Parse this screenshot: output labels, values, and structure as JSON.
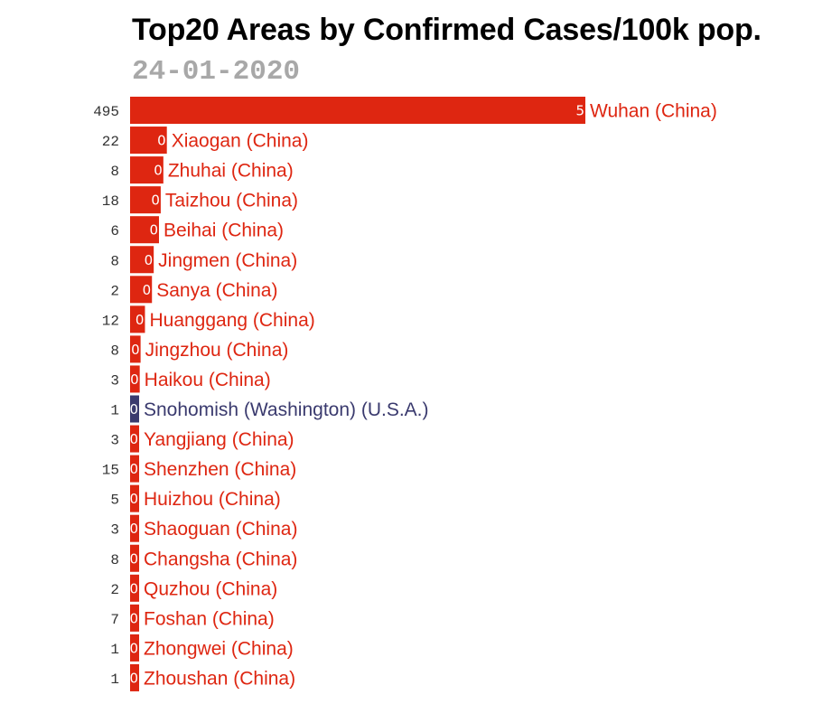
{
  "title": "Top20 Areas by Confirmed Cases/100k pop.",
  "date": "24-01-2020",
  "colors": {
    "china": "#de2611",
    "usa": "#3a3a6e"
  },
  "chart_data": {
    "type": "bar",
    "title": "Top20 Areas by Confirmed Cases/100k pop.",
    "subtitle": "24-01-2020",
    "categories": [
      "Wuhan (China)",
      "Xiaogan (China)",
      "Zhuhai (China)",
      "Taizhou (China)",
      "Beihai (China)",
      "Jingmen (China)",
      "Sanya (China)",
      "Huanggang (China)",
      "Jingzhou (China)",
      "Haikou (China)",
      "Snohomish (Washington) (U.S.A.)",
      "Yangjiang (China)",
      "Shenzhen (China)",
      "Huizhou (China)",
      "Shaoguan (China)",
      "Changsha (China)",
      "Quzhou (China)",
      "Foshan (China)",
      "Zhongwei (China)",
      "Zhoushan (China)"
    ],
    "confirmed": [
      495,
      22,
      8,
      18,
      6,
      8,
      2,
      12,
      8,
      3,
      1,
      3,
      15,
      5,
      3,
      8,
      2,
      7,
      1,
      1
    ],
    "bar_labels": [
      "5",
      "0",
      "0",
      "0",
      "0",
      "0",
      "0",
      "0",
      "0",
      "0",
      "0",
      "0",
      "0",
      "0",
      "0",
      "0",
      "0",
      "0",
      "0",
      "0"
    ],
    "values": [
      5.2,
      0.42,
      0.38,
      0.35,
      0.33,
      0.27,
      0.25,
      0.17,
      0.12,
      0.11,
      0.1,
      0.09,
      0.09,
      0.08,
      0.08,
      0.08,
      0.07,
      0.07,
      0.07,
      0.07
    ],
    "country": [
      "China",
      "China",
      "China",
      "China",
      "China",
      "China",
      "China",
      "China",
      "China",
      "China",
      "U.S.A.",
      "China",
      "China",
      "China",
      "China",
      "China",
      "China",
      "China",
      "China",
      "China"
    ],
    "xlim": [
      0,
      5.2
    ],
    "grid": false,
    "legend": "none"
  }
}
